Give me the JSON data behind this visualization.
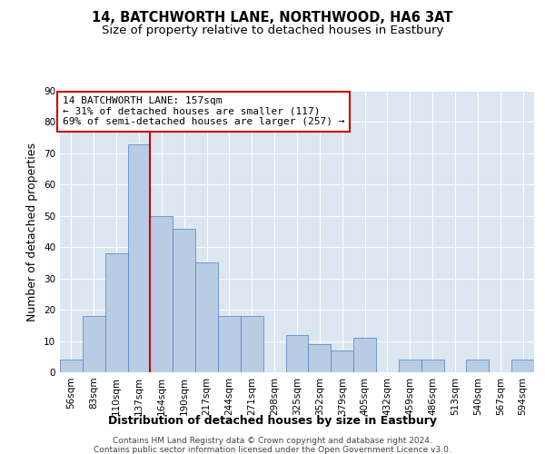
{
  "title": "14, BATCHWORTH LANE, NORTHWOOD, HA6 3AT",
  "subtitle": "Size of property relative to detached houses in Eastbury",
  "xlabel": "Distribution of detached houses by size in Eastbury",
  "ylabel": "Number of detached properties",
  "bin_labels": [
    "56sqm",
    "83sqm",
    "110sqm",
    "137sqm",
    "164sqm",
    "190sqm",
    "217sqm",
    "244sqm",
    "271sqm",
    "298sqm",
    "325sqm",
    "352sqm",
    "379sqm",
    "405sqm",
    "432sqm",
    "459sqm",
    "486sqm",
    "513sqm",
    "540sqm",
    "567sqm",
    "594sqm"
  ],
  "bar_values": [
    4,
    18,
    38,
    73,
    50,
    46,
    35,
    18,
    18,
    0,
    12,
    9,
    7,
    11,
    0,
    4,
    4,
    0,
    4,
    0,
    4
  ],
  "bar_color": "#b8cce4",
  "bar_edge_color": "#4f81bd",
  "annotation_title": "14 BATCHWORTH LANE: 157sqm",
  "annotation_line1": "← 31% of detached houses are smaller (117)",
  "annotation_line2": "69% of semi-detached houses are larger (257) →",
  "annotation_box_color": "#ffffff",
  "annotation_box_edge": "#cc0000",
  "vline_color": "#cc0000",
  "vline_x": 3.5,
  "ylim": [
    0,
    90
  ],
  "yticks": [
    0,
    10,
    20,
    30,
    40,
    50,
    60,
    70,
    80,
    90
  ],
  "footer1": "Contains HM Land Registry data © Crown copyright and database right 2024.",
  "footer2": "Contains public sector information licensed under the Open Government Licence v3.0.",
  "bg_color": "#ffffff",
  "plot_bg_color": "#dce6f1",
  "grid_color": "#ffffff",
  "title_fontsize": 10.5,
  "subtitle_fontsize": 9.5,
  "axis_label_fontsize": 9,
  "tick_fontsize": 7.5,
  "annotation_fontsize": 8,
  "footer_fontsize": 6.5
}
